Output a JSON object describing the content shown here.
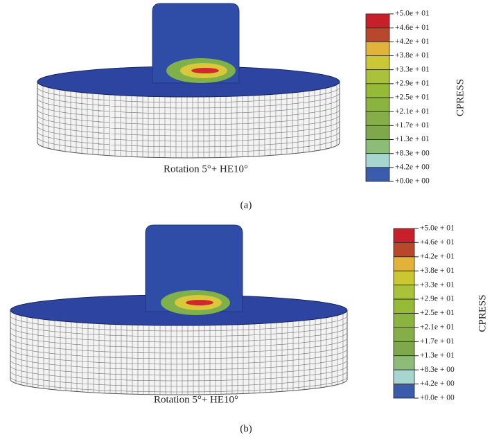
{
  "panels": [
    {
      "caption": "Rotation 5°+ HE10°",
      "label": "(a)",
      "colorbar": {
        "title": "CPRESS",
        "labels": [
          "+5.0e + 01",
          "+4.6e + 01",
          "+4.2e + 01",
          "+3.8e + 01",
          "+3.3e + 01",
          "+2.9e + 01",
          "+2.5e + 01",
          "+2.1e + 01",
          "+1.7e + 01",
          "+1.3e + 01",
          "+8.3e + 00",
          "+4.2e + 00",
          "+0.0e + 00"
        ]
      }
    },
    {
      "caption": "Rotation 5°+ HE10°",
      "label": "(b)",
      "colorbar": {
        "title": "CPRESS",
        "labels": [
          "+5.0e + 01",
          "+4.6e + 01",
          "+4.2e + 01",
          "+3.8e + 01",
          "+3.3e + 01",
          "+2.9e + 01",
          "+2.5e + 01",
          "+2.1e + 01",
          "+1.7e + 01",
          "+1.3e + 01",
          "+8.3e + 00",
          "+4.2e + 00",
          "+0.0e + 00"
        ]
      }
    }
  ]
}
